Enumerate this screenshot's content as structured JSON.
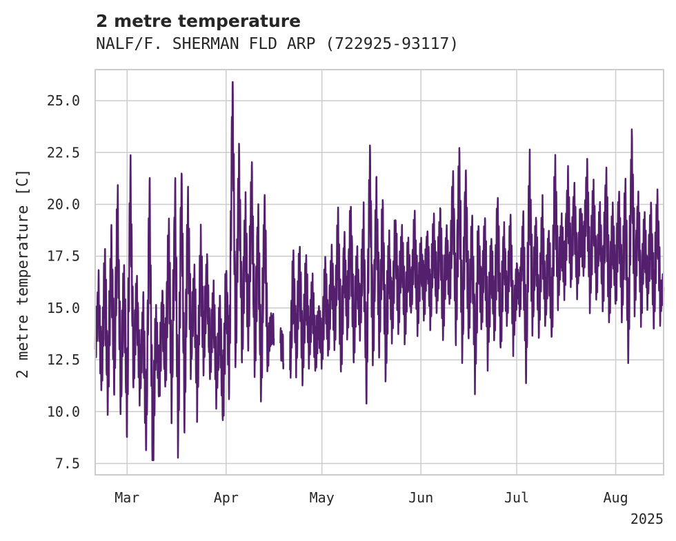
{
  "chart_data": {
    "type": "line",
    "title": "2 metre temperature",
    "subtitle": "NALF/F. SHERMAN FLD ARP (722925-93117)",
    "ylabel": "2 metre temperature [C]",
    "xlabel": "",
    "ylim": [
      6.95,
      26.5
    ],
    "xlim": [
      "2025-02-19",
      "2025-08-16"
    ],
    "yticks": [
      7.5,
      10.0,
      12.5,
      15.0,
      17.5,
      20.0,
      22.5,
      25.0
    ],
    "ytick_labels": [
      "7.5",
      "10.0",
      "12.5",
      "15.0",
      "17.5",
      "20.0",
      "22.5",
      "25.0"
    ],
    "xticks": [
      "2025-03-01",
      "2025-04-01",
      "2025-05-01",
      "2025-06-01",
      "2025-07-01",
      "2025-08-01"
    ],
    "xtick_labels": [
      "Mar",
      "Apr",
      "May",
      "Jun",
      "Jul",
      "Aug"
    ],
    "year_label": "2025",
    "grid": true,
    "series_color": "#541f6c",
    "series": [
      {
        "values": [
          [
            "2025-02-19",
            13.0
          ],
          [
            "2025-02-20",
            15.5
          ],
          [
            "2025-02-21",
            12.0
          ],
          [
            "2025-02-22",
            16.5
          ],
          [
            "2025-02-23",
            11.0
          ],
          [
            "2025-02-24",
            17.5
          ],
          [
            "2025-02-25",
            12.0
          ],
          [
            "2025-02-26",
            19.5
          ],
          [
            "2025-02-27",
            11.0
          ],
          [
            "2025-02-28",
            16.0
          ],
          [
            "2025-03-01",
            10.0
          ],
          [
            "2025-03-02",
            21.0
          ],
          [
            "2025-03-03",
            12.0
          ],
          [
            "2025-03-04",
            15.5
          ],
          [
            "2025-03-05",
            11.5
          ],
          [
            "2025-03-06",
            14.5
          ],
          [
            "2025-03-07",
            9.0
          ],
          [
            "2025-03-08",
            20.5
          ],
          [
            "2025-03-09",
            8.0
          ],
          [
            "2025-03-10",
            14.0
          ],
          [
            "2025-03-11",
            11.5
          ],
          [
            "2025-03-12",
            15.0
          ],
          [
            "2025-03-13",
            12.0
          ],
          [
            "2025-03-14",
            18.0
          ],
          [
            "2025-03-15",
            11.0
          ],
          [
            "2025-03-16",
            20.0
          ],
          [
            "2025-03-17",
            9.0
          ],
          [
            "2025-03-18",
            21.0
          ],
          [
            "2025-03-19",
            10.0
          ],
          [
            "2025-03-20",
            19.5
          ],
          [
            "2025-03-21",
            13.0
          ],
          [
            "2025-03-22",
            16.0
          ],
          [
            "2025-03-23",
            11.0
          ],
          [
            "2025-03-24",
            17.5
          ],
          [
            "2025-03-25",
            13.0
          ],
          [
            "2025-03-26",
            16.5
          ],
          [
            "2025-03-27",
            12.5
          ],
          [
            "2025-03-28",
            15.0
          ],
          [
            "2025-03-29",
            11.5
          ],
          [
            "2025-03-30",
            14.5
          ],
          [
            "2025-03-31",
            10.5
          ],
          [
            "2025-04-01",
            16.0
          ],
          [
            "2025-04-02",
            12.0
          ],
          [
            "2025-04-03",
            25.5
          ],
          [
            "2025-04-04",
            13.0
          ],
          [
            "2025-04-05",
            22.0
          ],
          [
            "2025-04-06",
            13.5
          ],
          [
            "2025-04-07",
            19.0
          ],
          [
            "2025-04-08",
            14.0
          ],
          [
            "2025-04-09",
            21.0
          ],
          [
            "2025-04-10",
            13.0
          ],
          [
            "2025-04-11",
            18.5
          ],
          [
            "2025-04-12",
            11.5
          ],
          [
            "2025-04-13",
            19.5
          ],
          [
            "2025-04-14",
            13.0
          ],
          [
            "2025-04-15",
            14.0
          ],
          [
            "2025-04-16",
            14.0
          ],
          [
            "2025-04-17",
            null
          ],
          [
            "2025-04-18",
            13.3
          ],
          [
            "2025-04-19",
            12.9
          ],
          [
            "2025-04-20",
            null
          ],
          [
            "2025-04-21",
            12.0
          ],
          [
            "2025-04-22",
            16.5
          ],
          [
            "2025-04-23",
            13.0
          ],
          [
            "2025-04-24",
            17.0
          ],
          [
            "2025-04-25",
            12.5
          ],
          [
            "2025-04-26",
            16.5
          ],
          [
            "2025-04-27",
            13.0
          ],
          [
            "2025-04-28",
            15.5
          ],
          [
            "2025-04-29",
            12.8
          ],
          [
            "2025-04-30",
            14.5
          ],
          [
            "2025-05-01",
            13.0
          ],
          [
            "2025-05-02",
            16.5
          ],
          [
            "2025-05-03",
            13.5
          ],
          [
            "2025-05-04",
            17.0
          ],
          [
            "2025-05-05",
            14.0
          ],
          [
            "2025-05-06",
            18.5
          ],
          [
            "2025-05-07",
            13.0
          ],
          [
            "2025-05-08",
            17.5
          ],
          [
            "2025-05-09",
            14.5
          ],
          [
            "2025-05-10",
            19.0
          ],
          [
            "2025-05-11",
            13.5
          ],
          [
            "2025-05-12",
            17.0
          ],
          [
            "2025-05-13",
            14.5
          ],
          [
            "2025-05-14",
            18.5
          ],
          [
            "2025-05-15",
            11.5
          ],
          [
            "2025-05-16",
            22.0
          ],
          [
            "2025-05-17",
            13.0
          ],
          [
            "2025-05-18",
            20.0
          ],
          [
            "2025-05-19",
            14.0
          ],
          [
            "2025-05-20",
            19.0
          ],
          [
            "2025-05-21",
            13.0
          ],
          [
            "2025-05-22",
            17.5
          ],
          [
            "2025-05-23",
            14.5
          ],
          [
            "2025-05-24",
            18.5
          ],
          [
            "2025-05-25",
            15.0
          ],
          [
            "2025-05-26",
            18.0
          ],
          [
            "2025-05-27",
            14.5
          ],
          [
            "2025-05-28",
            17.5
          ],
          [
            "2025-05-29",
            15.5
          ],
          [
            "2025-05-30",
            18.5
          ],
          [
            "2025-05-31",
            15.0
          ],
          [
            "2025-06-01",
            17.5
          ],
          [
            "2025-06-02",
            15.5
          ],
          [
            "2025-06-03",
            18.0
          ],
          [
            "2025-06-04",
            15.0
          ],
          [
            "2025-06-05",
            18.5
          ],
          [
            "2025-06-06",
            15.5
          ],
          [
            "2025-06-07",
            19.0
          ],
          [
            "2025-06-08",
            14.5
          ],
          [
            "2025-06-09",
            18.0
          ],
          [
            "2025-06-10",
            16.0
          ],
          [
            "2025-06-11",
            20.5
          ],
          [
            "2025-06-12",
            14.5
          ],
          [
            "2025-06-13",
            21.5
          ],
          [
            "2025-06-14",
            13.5
          ],
          [
            "2025-06-15",
            20.5
          ],
          [
            "2025-06-16",
            14.5
          ],
          [
            "2025-06-17",
            18.5
          ],
          [
            "2025-06-18",
            12.5
          ],
          [
            "2025-06-19",
            18.0
          ],
          [
            "2025-06-20",
            15.0
          ],
          [
            "2025-06-21",
            18.5
          ],
          [
            "2025-06-22",
            13.5
          ],
          [
            "2025-06-23",
            17.5
          ],
          [
            "2025-06-24",
            14.5
          ],
          [
            "2025-06-25",
            19.0
          ],
          [
            "2025-06-26",
            14.0
          ],
          [
            "2025-06-27",
            18.0
          ],
          [
            "2025-06-28",
            15.0
          ],
          [
            "2025-06-29",
            18.5
          ],
          [
            "2025-06-30",
            14.0
          ],
          [
            "2025-07-01",
            16.5
          ],
          [
            "2025-07-02",
            15.5
          ],
          [
            "2025-07-03",
            18.5
          ],
          [
            "2025-07-04",
            12.5
          ],
          [
            "2025-07-05",
            21.0
          ],
          [
            "2025-07-06",
            15.0
          ],
          [
            "2025-07-07",
            18.5
          ],
          [
            "2025-07-08",
            14.5
          ],
          [
            "2025-07-09",
            19.0
          ],
          [
            "2025-07-10",
            15.0
          ],
          [
            "2025-07-11",
            18.0
          ],
          [
            "2025-07-12",
            14.5
          ],
          [
            "2025-07-13",
            21.0
          ],
          [
            "2025-07-14",
            16.0
          ],
          [
            "2025-07-15",
            18.5
          ],
          [
            "2025-07-16",
            16.5
          ],
          [
            "2025-07-17",
            20.5
          ],
          [
            "2025-07-18",
            17.0
          ],
          [
            "2025-07-19",
            20.0
          ],
          [
            "2025-07-20",
            16.5
          ],
          [
            "2025-07-21",
            19.0
          ],
          [
            "2025-07-22",
            17.5
          ],
          [
            "2025-07-23",
            21.0
          ],
          [
            "2025-07-24",
            16.0
          ],
          [
            "2025-07-25",
            20.0
          ],
          [
            "2025-07-26",
            16.5
          ],
          [
            "2025-07-27",
            19.0
          ],
          [
            "2025-07-28",
            16.0
          ],
          [
            "2025-07-29",
            20.5
          ],
          [
            "2025-07-30",
            15.5
          ],
          [
            "2025-07-31",
            19.0
          ],
          [
            "2025-08-01",
            16.0
          ],
          [
            "2025-08-02",
            19.5
          ],
          [
            "2025-08-03",
            15.5
          ],
          [
            "2025-08-04",
            20.0
          ],
          [
            "2025-08-05",
            13.5
          ],
          [
            "2025-08-06",
            22.5
          ],
          [
            "2025-08-07",
            16.0
          ],
          [
            "2025-08-08",
            19.5
          ],
          [
            "2025-08-09",
            15.5
          ],
          [
            "2025-08-10",
            18.5
          ],
          [
            "2025-08-11",
            16.0
          ],
          [
            "2025-08-12",
            19.0
          ],
          [
            "2025-08-13",
            15.0
          ],
          [
            "2025-08-14",
            19.5
          ],
          [
            "2025-08-15",
            15.5
          ],
          [
            "2025-08-16",
            16.0
          ]
        ]
      }
    ]
  }
}
